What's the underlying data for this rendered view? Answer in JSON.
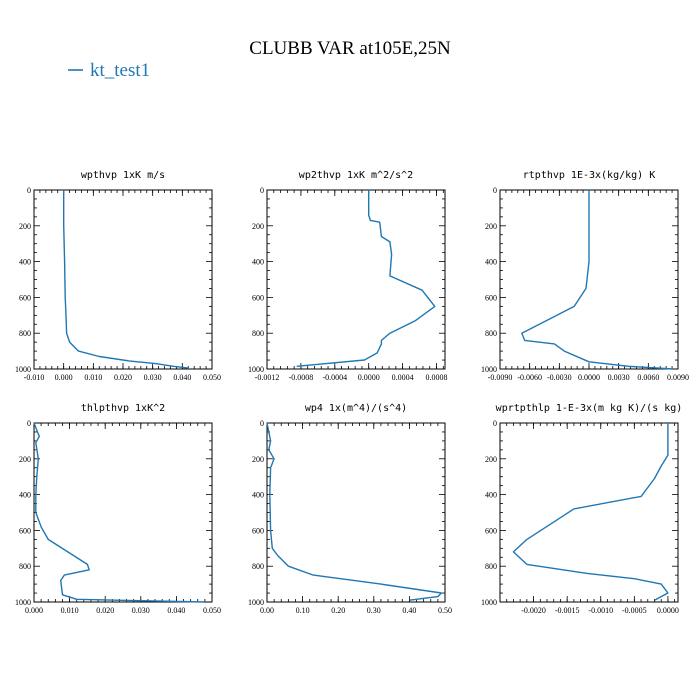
{
  "figure": {
    "title": "CLUBB VAR at105E,25N",
    "legend": {
      "label": "kt_test1",
      "color": "#1f77b4"
    }
  },
  "chart_data": [
    {
      "type": "line",
      "title": "wpthvp  1xK m/s",
      "xlim": [
        -0.01,
        0.05
      ],
      "ylim": [
        1000,
        0
      ],
      "xticks": [
        "-0.010",
        "0.000",
        "0.010",
        "0.020",
        "0.030",
        "0.040",
        "0.050"
      ],
      "xtick_values": [
        -0.01,
        0.0,
        0.01,
        0.02,
        0.03,
        0.04,
        0.05
      ],
      "yticks": [
        "0",
        "200",
        "400",
        "600",
        "800",
        "1000"
      ],
      "ytick_values": [
        0,
        200,
        400,
        600,
        800,
        1000
      ],
      "series": [
        {
          "name": "kt_test1",
          "x": [
            0.0,
            0.0,
            0.0003,
            0.0005,
            0.0008,
            0.001,
            0.002,
            0.005,
            0.012,
            0.022,
            0.031,
            0.037,
            0.042,
            0.042
          ],
          "y": [
            0,
            200,
            400,
            600,
            700,
            800,
            850,
            900,
            930,
            955,
            970,
            985,
            995,
            1000
          ]
        }
      ]
    },
    {
      "type": "line",
      "title": "wp2thvp  1xK m^2/s^2",
      "xlim": [
        -0.0012,
        0.0009
      ],
      "ylim": [
        1000,
        0
      ],
      "xticks": [
        "-0.0012",
        "-0.0008",
        "-0.0004",
        "0.0000",
        "0.0004",
        "0.0008"
      ],
      "xtick_values": [
        -0.0012,
        -0.0008,
        -0.0004,
        0.0,
        0.0004,
        0.0008
      ],
      "yticks": [
        "0",
        "200",
        "400",
        "600",
        "800",
        "1000"
      ],
      "ytick_values": [
        0,
        200,
        400,
        600,
        800,
        1000
      ],
      "series": [
        {
          "name": "kt_test1",
          "x": [
            0.0,
            0.0,
            2e-05,
            0.00013,
            0.00015,
            0.00025,
            0.00027,
            0.00025,
            0.00063,
            0.00078,
            0.00055,
            0.00025,
            0.00015,
            0.00015,
            0.0001,
            -5e-05,
            -0.0005,
            -0.00085
          ],
          "y": [
            0,
            140,
            170,
            180,
            260,
            290,
            360,
            480,
            560,
            650,
            730,
            800,
            840,
            860,
            910,
            950,
            970,
            985
          ]
        }
      ]
    },
    {
      "type": "line",
      "title": "rtpthvp  1E-3x(kg/kg) K",
      "xlim": [
        -0.009,
        0.009
      ],
      "ylim": [
        1000,
        0
      ],
      "xticks": [
        "-0.0090",
        "-0.0060",
        "-0.0030",
        "0.0000",
        "0.0030",
        "0.0060",
        "0.0090"
      ],
      "xtick_values": [
        -0.009,
        -0.006,
        -0.003,
        0.0,
        0.003,
        0.006,
        0.009
      ],
      "yticks": [
        "0",
        "200",
        "400",
        "600",
        "800",
        "1000"
      ],
      "ytick_values": [
        0,
        200,
        400,
        600,
        800,
        1000
      ],
      "series": [
        {
          "name": "kt_test1",
          "x": [
            0.0,
            0.0,
            0.0,
            -0.0003,
            -0.0015,
            -0.0068,
            -0.0065,
            -0.0035,
            -0.0025,
            0.0,
            0.004,
            0.0085
          ],
          "y": [
            0,
            200,
            400,
            550,
            650,
            800,
            840,
            860,
            900,
            960,
            985,
            1000
          ]
        }
      ]
    },
    {
      "type": "line",
      "title": "thlpthvp  1xK^2",
      "xlim": [
        0.0,
        0.05
      ],
      "ylim": [
        1000,
        0
      ],
      "xticks": [
        "0.000",
        "0.010",
        "0.020",
        "0.030",
        "0.040",
        "0.050"
      ],
      "xtick_values": [
        0.0,
        0.01,
        0.02,
        0.03,
        0.04,
        0.05
      ],
      "yticks": [
        "0",
        "200",
        "400",
        "600",
        "800",
        "1000"
      ],
      "ytick_values": [
        0,
        200,
        400,
        600,
        800,
        1000
      ],
      "series": [
        {
          "name": "kt_test1",
          "x": [
            0.0,
            0.0008,
            0.0015,
            0.0005,
            0.0012,
            0.0008,
            0.0005,
            0.0005,
            0.002,
            0.004,
            0.015,
            0.0155,
            0.0085,
            0.0075,
            0.008,
            0.012,
            0.03,
            0.048
          ],
          "y": [
            0,
            40,
            75,
            110,
            200,
            300,
            400,
            500,
            580,
            650,
            790,
            820,
            850,
            880,
            960,
            985,
            993,
            1000
          ]
        }
      ]
    },
    {
      "type": "line",
      "title": "wp4  1x(m^4)/(s^4)",
      "xlim": [
        0.0,
        0.5
      ],
      "ylim": [
        1000,
        0
      ],
      "xticks": [
        "0.00",
        "0.10",
        "0.20",
        "0.30",
        "0.40",
        "0.50"
      ],
      "xtick_values": [
        0.0,
        0.1,
        0.2,
        0.3,
        0.4,
        0.5
      ],
      "yticks": [
        "0",
        "200",
        "400",
        "600",
        "800",
        "1000"
      ],
      "ytick_values": [
        0,
        200,
        400,
        600,
        800,
        1000
      ],
      "series": [
        {
          "name": "kt_test1",
          "x": [
            0.0,
            0.01,
            0.005,
            0.02,
            0.01,
            0.008,
            0.01,
            0.015,
            0.03,
            0.06,
            0.13,
            0.32,
            0.49,
            0.48,
            0.4
          ],
          "y": [
            0,
            100,
            150,
            200,
            250,
            400,
            600,
            700,
            740,
            800,
            850,
            900,
            950,
            970,
            990
          ]
        }
      ]
    },
    {
      "type": "line",
      "title": "wprtpthlp  1-E-3x(m kg K)/(s kg)",
      "xlim": [
        -0.0025,
        0.00015
      ],
      "ylim": [
        1000,
        0
      ],
      "xticks": [
        "-0.0020",
        "-0.0015",
        "-0.0010",
        "-0.0005",
        "0.0000"
      ],
      "xtick_values": [
        -0.002,
        -0.0015,
        -0.001,
        -0.0005,
        0.0
      ],
      "yticks": [
        "0",
        "200",
        "400",
        "600",
        "800",
        "1000"
      ],
      "ytick_values": [
        0,
        200,
        400,
        600,
        800,
        1000
      ],
      "series": [
        {
          "name": "kt_test1",
          "x": [
            0.0,
            0.0,
            -0.0001,
            -0.0002,
            -0.0004,
            -0.0014,
            -0.0021,
            -0.0023,
            -0.0021,
            -0.0012,
            -0.0005,
            -0.0001,
            0.0,
            -0.0002
          ],
          "y": [
            0,
            180,
            240,
            310,
            410,
            480,
            650,
            720,
            790,
            840,
            870,
            900,
            950,
            990
          ]
        }
      ]
    }
  ]
}
